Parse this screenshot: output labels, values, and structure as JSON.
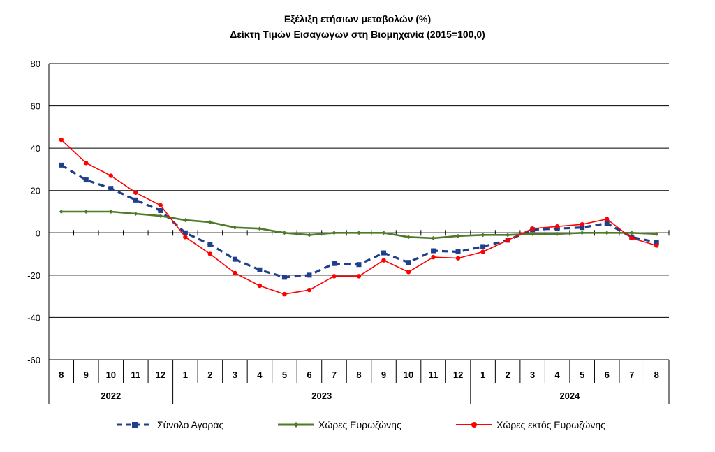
{
  "chart_data": {
    "type": "line",
    "title": "Εξέλιξη ετήσιων μεταβολών (%)",
    "subtitle": "Δείκτη Τιμών Εισαγωγών στη Βιομηχανία (2015=100,0)",
    "xlabel": "",
    "ylabel": "",
    "ylim": [
      -60,
      80
    ],
    "yticks": [
      80,
      60,
      40,
      20,
      0,
      -20,
      -40,
      -60
    ],
    "grid": true,
    "legend_position": "bottom",
    "categories": [
      "8",
      "9",
      "10",
      "11",
      "12",
      "1",
      "2",
      "3",
      "4",
      "5",
      "6",
      "7",
      "8",
      "9",
      "10",
      "11",
      "12",
      "1",
      "2",
      "3",
      "4",
      "5",
      "6",
      "7",
      "8"
    ],
    "year_groups": [
      {
        "label": "2022",
        "start": 0,
        "end": 4
      },
      {
        "label": "2023",
        "start": 5,
        "end": 16
      },
      {
        "label": "2024",
        "start": 17,
        "end": 24
      }
    ],
    "series": [
      {
        "name": "Σύνολο Αγοράς",
        "color": "#1F3F8C",
        "style": "dashed-square",
        "values": [
          32,
          25,
          21,
          15.5,
          10.5,
          0,
          -5.5,
          -12.5,
          -17.5,
          -21,
          -20,
          -14.5,
          -15,
          -9.5,
          -14,
          -8.5,
          -9,
          -6.5,
          -3.5,
          1.5,
          2,
          2.5,
          4.5,
          -2,
          -4.5
        ]
      },
      {
        "name": "Χώρες Ευρωζώνης",
        "color": "#4F7A28",
        "style": "solid-diamond",
        "values": [
          10,
          10,
          10,
          9,
          8,
          6,
          5,
          2.5,
          2,
          0,
          -1,
          0,
          0,
          0,
          -2,
          -2.5,
          -1.5,
          -1,
          -1,
          -0.5,
          -0.5,
          0,
          0,
          0,
          -0.5
        ]
      },
      {
        "name": "Χώρες εκτός Ευρωζώνης",
        "color": "#FF0000",
        "style": "solid-circle",
        "values": [
          44,
          33,
          27,
          19,
          13,
          -2,
          -10,
          -19,
          -25,
          -29,
          -27,
          -20.5,
          -20.5,
          -13,
          -18.5,
          -11.5,
          -12,
          -9,
          -3.5,
          2,
          3,
          4,
          6.5,
          -2.5,
          -6
        ]
      }
    ]
  }
}
